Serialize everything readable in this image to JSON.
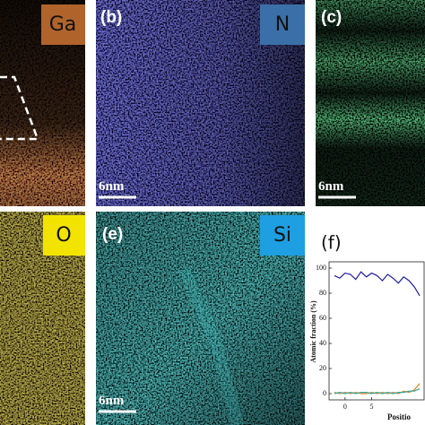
{
  "panels": [
    {
      "label": "Ga"
    },
    {
      "tag": "(b)",
      "label": "N",
      "scale_bar": "6nm"
    },
    {
      "tag": "(c)",
      "scale_bar": "6nm"
    },
    {
      "label": "O"
    },
    {
      "tag": "(e)",
      "label": "Si",
      "scale_bar": "6nm"
    }
  ],
  "chart_data": {
    "type": "line",
    "title": "(f)",
    "y_label": "Atomic fraction (%)",
    "x_label": "Positio",
    "x": [
      -2,
      -1,
      0,
      1,
      2,
      3,
      4,
      5,
      6,
      7,
      8,
      9,
      10,
      11,
      12,
      13,
      14
    ],
    "series": [
      {
        "color": "#1c1ca8",
        "values": [
          94,
          92,
          96,
          95,
          91,
          97,
          93,
          96,
          94,
          90,
          95,
          92,
          88,
          93,
          90,
          85,
          78
        ]
      },
      {
        "color": "#e8821e",
        "values": [
          1,
          0,
          1,
          0,
          1,
          0,
          0,
          1,
          0,
          1,
          0,
          1,
          0,
          2,
          1,
          3,
          8
        ]
      },
      {
        "color": "#2aa6a0",
        "values": [
          0,
          1,
          0,
          1,
          0,
          1,
          1,
          0,
          1,
          0,
          1,
          0,
          1,
          1,
          2,
          2,
          4
        ]
      }
    ],
    "xlim": [
      -3,
      15
    ],
    "ylim": [
      -5,
      105
    ],
    "xticks": [
      0,
      5
    ],
    "yticks": [
      0,
      20,
      40,
      60,
      80,
      100
    ]
  }
}
